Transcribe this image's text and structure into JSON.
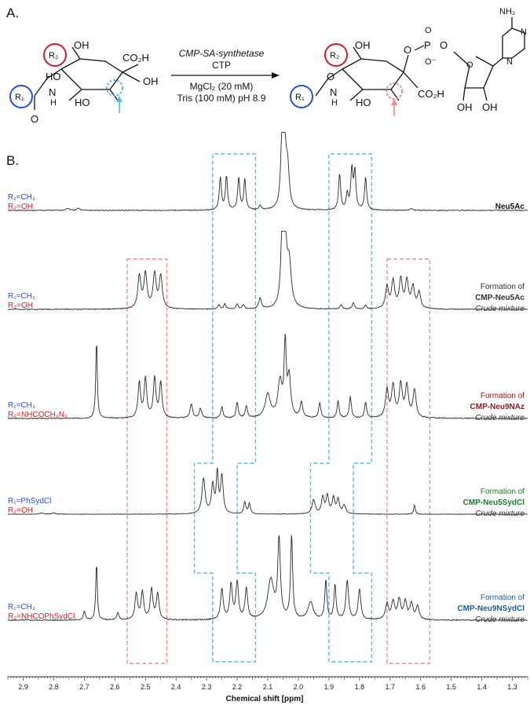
{
  "panel_a_label": "A.",
  "panel_b_label": "B.",
  "scheme": {
    "enzyme": "CMP-SA-synthetase",
    "cofactor": "CTP",
    "condition1": "MgCl₂ (20 mM)",
    "condition2": "Tris (100 mM) pH 8.9",
    "r1": "R₁",
    "r2": "R₂",
    "substrate_labels": [
      "OH",
      "CO₂H",
      "HO",
      "OH",
      "N",
      "H",
      "O",
      "HO"
    ],
    "product_labels": [
      "OH",
      "O",
      "P",
      "O",
      "O⁻",
      "O",
      "O",
      "CO₂H",
      "HO",
      "N",
      "H",
      "NH₂",
      "N",
      "N",
      "O",
      "OH",
      "OH"
    ]
  },
  "colors": {
    "blue_label": "#2a4fd6",
    "red_label": "#c8202a",
    "green_label": "#1e7a2e",
    "teal_label": "#1f5f8e",
    "dark_red_label": "#8a1a1a",
    "blue_box": "#57b9f0",
    "red_box": "#f08a8a"
  },
  "chart_data": {
    "type": "line",
    "xlabel": "Chemical shift [ppm]",
    "xlim": [
      2.95,
      1.25
    ],
    "x_reversed": true,
    "ticks": [
      "2.9",
      "2.8",
      "2.7",
      "2.6",
      "2.5",
      "2.4",
      "2.3",
      "2.2",
      "2.1",
      "2.0",
      "1.9",
      "1.8",
      "1.7",
      "1.6",
      "1.5",
      "1.4",
      "1.3"
    ],
    "spectra": [
      {
        "r1": "R₁=CH₃",
        "r2": "R₂=OH",
        "label_lines": [
          {
            "text": "Neu5Ac",
            "style": "bold"
          }
        ],
        "peaks": [
          [
            2.255,
            0.45,
            0.004
          ],
          [
            2.235,
            0.47,
            0.004
          ],
          [
            2.195,
            0.45,
            0.004
          ],
          [
            2.175,
            0.42,
            0.004
          ],
          [
            2.125,
            0.06,
            0.004
          ],
          [
            2.053,
            1.0,
            0.005
          ],
          [
            2.045,
            0.9,
            0.005
          ],
          [
            2.035,
            0.55,
            0.006
          ],
          [
            1.865,
            0.5,
            0.004
          ],
          [
            1.84,
            0.22,
            0.004
          ],
          [
            1.825,
            0.55,
            0.004
          ],
          [
            1.815,
            0.52,
            0.004
          ],
          [
            1.78,
            0.45,
            0.004
          ],
          [
            2.755,
            0.03,
            0.006
          ],
          [
            2.72,
            0.03,
            0.006
          ],
          [
            1.63,
            0.02,
            0.006
          ]
        ]
      },
      {
        "r1": "R₁=CH₃",
        "r2": "R₂=OH",
        "label_lines": [
          {
            "text": "Formation of",
            "style": "normal"
          },
          {
            "text": "CMP-Neu5Ac",
            "style": "bold"
          },
          {
            "text": "Crude mixture",
            "style": "italic"
          }
        ],
        "peaks": [
          [
            2.52,
            0.45,
            0.006
          ],
          [
            2.5,
            0.48,
            0.006
          ],
          [
            2.47,
            0.48,
            0.006
          ],
          [
            2.45,
            0.45,
            0.006
          ],
          [
            2.26,
            0.06,
            0.004
          ],
          [
            2.24,
            0.07,
            0.004
          ],
          [
            2.2,
            0.07,
            0.004
          ],
          [
            2.18,
            0.06,
            0.004
          ],
          [
            2.125,
            0.15,
            0.005
          ],
          [
            2.053,
            1.0,
            0.005
          ],
          [
            2.043,
            0.9,
            0.006
          ],
          [
            2.03,
            0.6,
            0.008
          ],
          [
            1.86,
            0.06,
            0.004
          ],
          [
            1.82,
            0.09,
            0.004
          ],
          [
            1.78,
            0.05,
            0.004
          ],
          [
            1.71,
            0.3,
            0.006
          ],
          [
            1.69,
            0.38,
            0.006
          ],
          [
            1.665,
            0.4,
            0.006
          ],
          [
            1.645,
            0.38,
            0.006
          ],
          [
            1.625,
            0.3,
            0.006
          ],
          [
            1.605,
            0.22,
            0.006
          ]
        ]
      },
      {
        "r1": "R₁=CH₃",
        "r2": "R₂=NHCOCH₂N₃",
        "label_lines": [
          {
            "text": "Formation of",
            "style": "normal"
          },
          {
            "text": "CMP-Neu9NAz",
            "style": "bold"
          },
          {
            "text": "Crude mixture",
            "style": "italic"
          }
        ],
        "peaks": [
          [
            2.66,
            1.0,
            0.003
          ],
          [
            2.52,
            0.45,
            0.005
          ],
          [
            2.5,
            0.5,
            0.005
          ],
          [
            2.47,
            0.5,
            0.005
          ],
          [
            2.45,
            0.45,
            0.005
          ],
          [
            2.35,
            0.18,
            0.005
          ],
          [
            2.32,
            0.12,
            0.005
          ],
          [
            2.25,
            0.15,
            0.004
          ],
          [
            2.2,
            0.2,
            0.004
          ],
          [
            2.17,
            0.15,
            0.004
          ],
          [
            2.1,
            0.3,
            0.01
          ],
          [
            2.06,
            0.45,
            0.008
          ],
          [
            2.043,
            0.95,
            0.004
          ],
          [
            2.03,
            0.5,
            0.006
          ],
          [
            1.99,
            0.2,
            0.005
          ],
          [
            1.93,
            0.2,
            0.004
          ],
          [
            1.87,
            0.22,
            0.004
          ],
          [
            1.83,
            0.27,
            0.004
          ],
          [
            1.78,
            0.2,
            0.004
          ],
          [
            1.71,
            0.35,
            0.006
          ],
          [
            1.69,
            0.4,
            0.006
          ],
          [
            1.665,
            0.42,
            0.006
          ],
          [
            1.645,
            0.4,
            0.006
          ],
          [
            1.62,
            0.35,
            0.006
          ]
        ]
      },
      {
        "r1": "R₁=PhSydCl",
        "r2": "R₂=OH",
        "label_lines": [
          {
            "text": "Formation of",
            "style": "normal"
          },
          {
            "text": "CMP-Neu5SydCl",
            "style": "bold"
          },
          {
            "text": "Crude mixture",
            "style": "italic"
          }
        ],
        "peaks": [
          [
            2.31,
            0.75,
            0.006
          ],
          [
            2.28,
            0.6,
            0.005
          ],
          [
            2.265,
            0.85,
            0.004
          ],
          [
            2.25,
            0.8,
            0.005
          ],
          [
            2.175,
            0.25,
            0.004
          ],
          [
            2.16,
            0.22,
            0.004
          ],
          [
            1.95,
            0.3,
            0.006
          ],
          [
            1.92,
            0.35,
            0.005
          ],
          [
            1.905,
            0.38,
            0.005
          ],
          [
            1.885,
            0.33,
            0.005
          ],
          [
            1.87,
            0.3,
            0.005
          ],
          [
            1.85,
            0.18,
            0.006
          ],
          [
            1.62,
            0.2,
            0.003
          ],
          [
            2.84,
            0.03,
            0.006
          ],
          [
            2.8,
            0.03,
            0.006
          ]
        ]
      },
      {
        "r1": "R₁=CH₃",
        "r2": "R₂=NHCOPhSydCl",
        "label_lines": [
          {
            "text": "Formation of",
            "style": "normal"
          },
          {
            "text": "CMP-Neu9NSydCl",
            "style": "bold"
          },
          {
            "text": "Crude mixture",
            "style": "italic"
          }
        ],
        "peaks": [
          [
            2.66,
            0.65,
            0.003
          ],
          [
            2.7,
            0.1,
            0.004
          ],
          [
            2.59,
            0.08,
            0.004
          ],
          [
            2.53,
            0.3,
            0.005
          ],
          [
            2.51,
            0.32,
            0.005
          ],
          [
            2.48,
            0.35,
            0.005
          ],
          [
            2.46,
            0.3,
            0.005
          ],
          [
            2.25,
            0.35,
            0.005
          ],
          [
            2.22,
            0.4,
            0.005
          ],
          [
            2.2,
            0.42,
            0.005
          ],
          [
            2.17,
            0.35,
            0.005
          ],
          [
            2.09,
            0.45,
            0.012
          ],
          [
            2.063,
            0.9,
            0.005
          ],
          [
            2.022,
            0.95,
            0.004
          ],
          [
            1.96,
            0.2,
            0.01
          ],
          [
            1.91,
            0.45,
            0.004
          ],
          [
            1.88,
            0.4,
            0.004
          ],
          [
            1.84,
            0.45,
            0.005
          ],
          [
            1.8,
            0.35,
            0.005
          ],
          [
            1.71,
            0.18,
            0.006
          ],
          [
            1.69,
            0.2,
            0.006
          ],
          [
            1.67,
            0.22,
            0.006
          ],
          [
            1.65,
            0.2,
            0.006
          ],
          [
            1.63,
            0.18,
            0.006
          ],
          [
            1.61,
            0.15,
            0.006
          ]
        ]
      }
    ]
  }
}
